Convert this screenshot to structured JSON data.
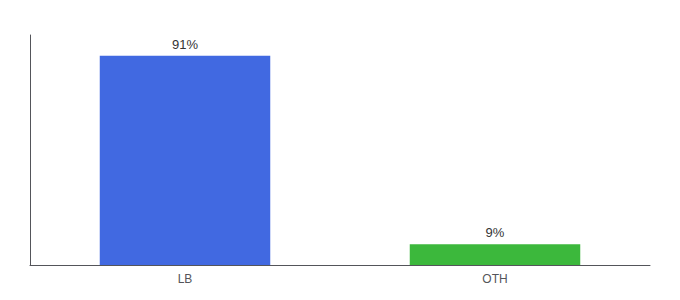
{
  "chart_data": {
    "type": "bar",
    "categories": [
      "LB",
      "OTH"
    ],
    "values": [
      91,
      9
    ],
    "value_labels": [
      "91%",
      "9%"
    ],
    "colors": [
      "#4169E1",
      "#3CB83C"
    ],
    "ylim": [
      0,
      100
    ],
    "grid": false,
    "data_labels": true,
    "tick_labels": "x"
  }
}
